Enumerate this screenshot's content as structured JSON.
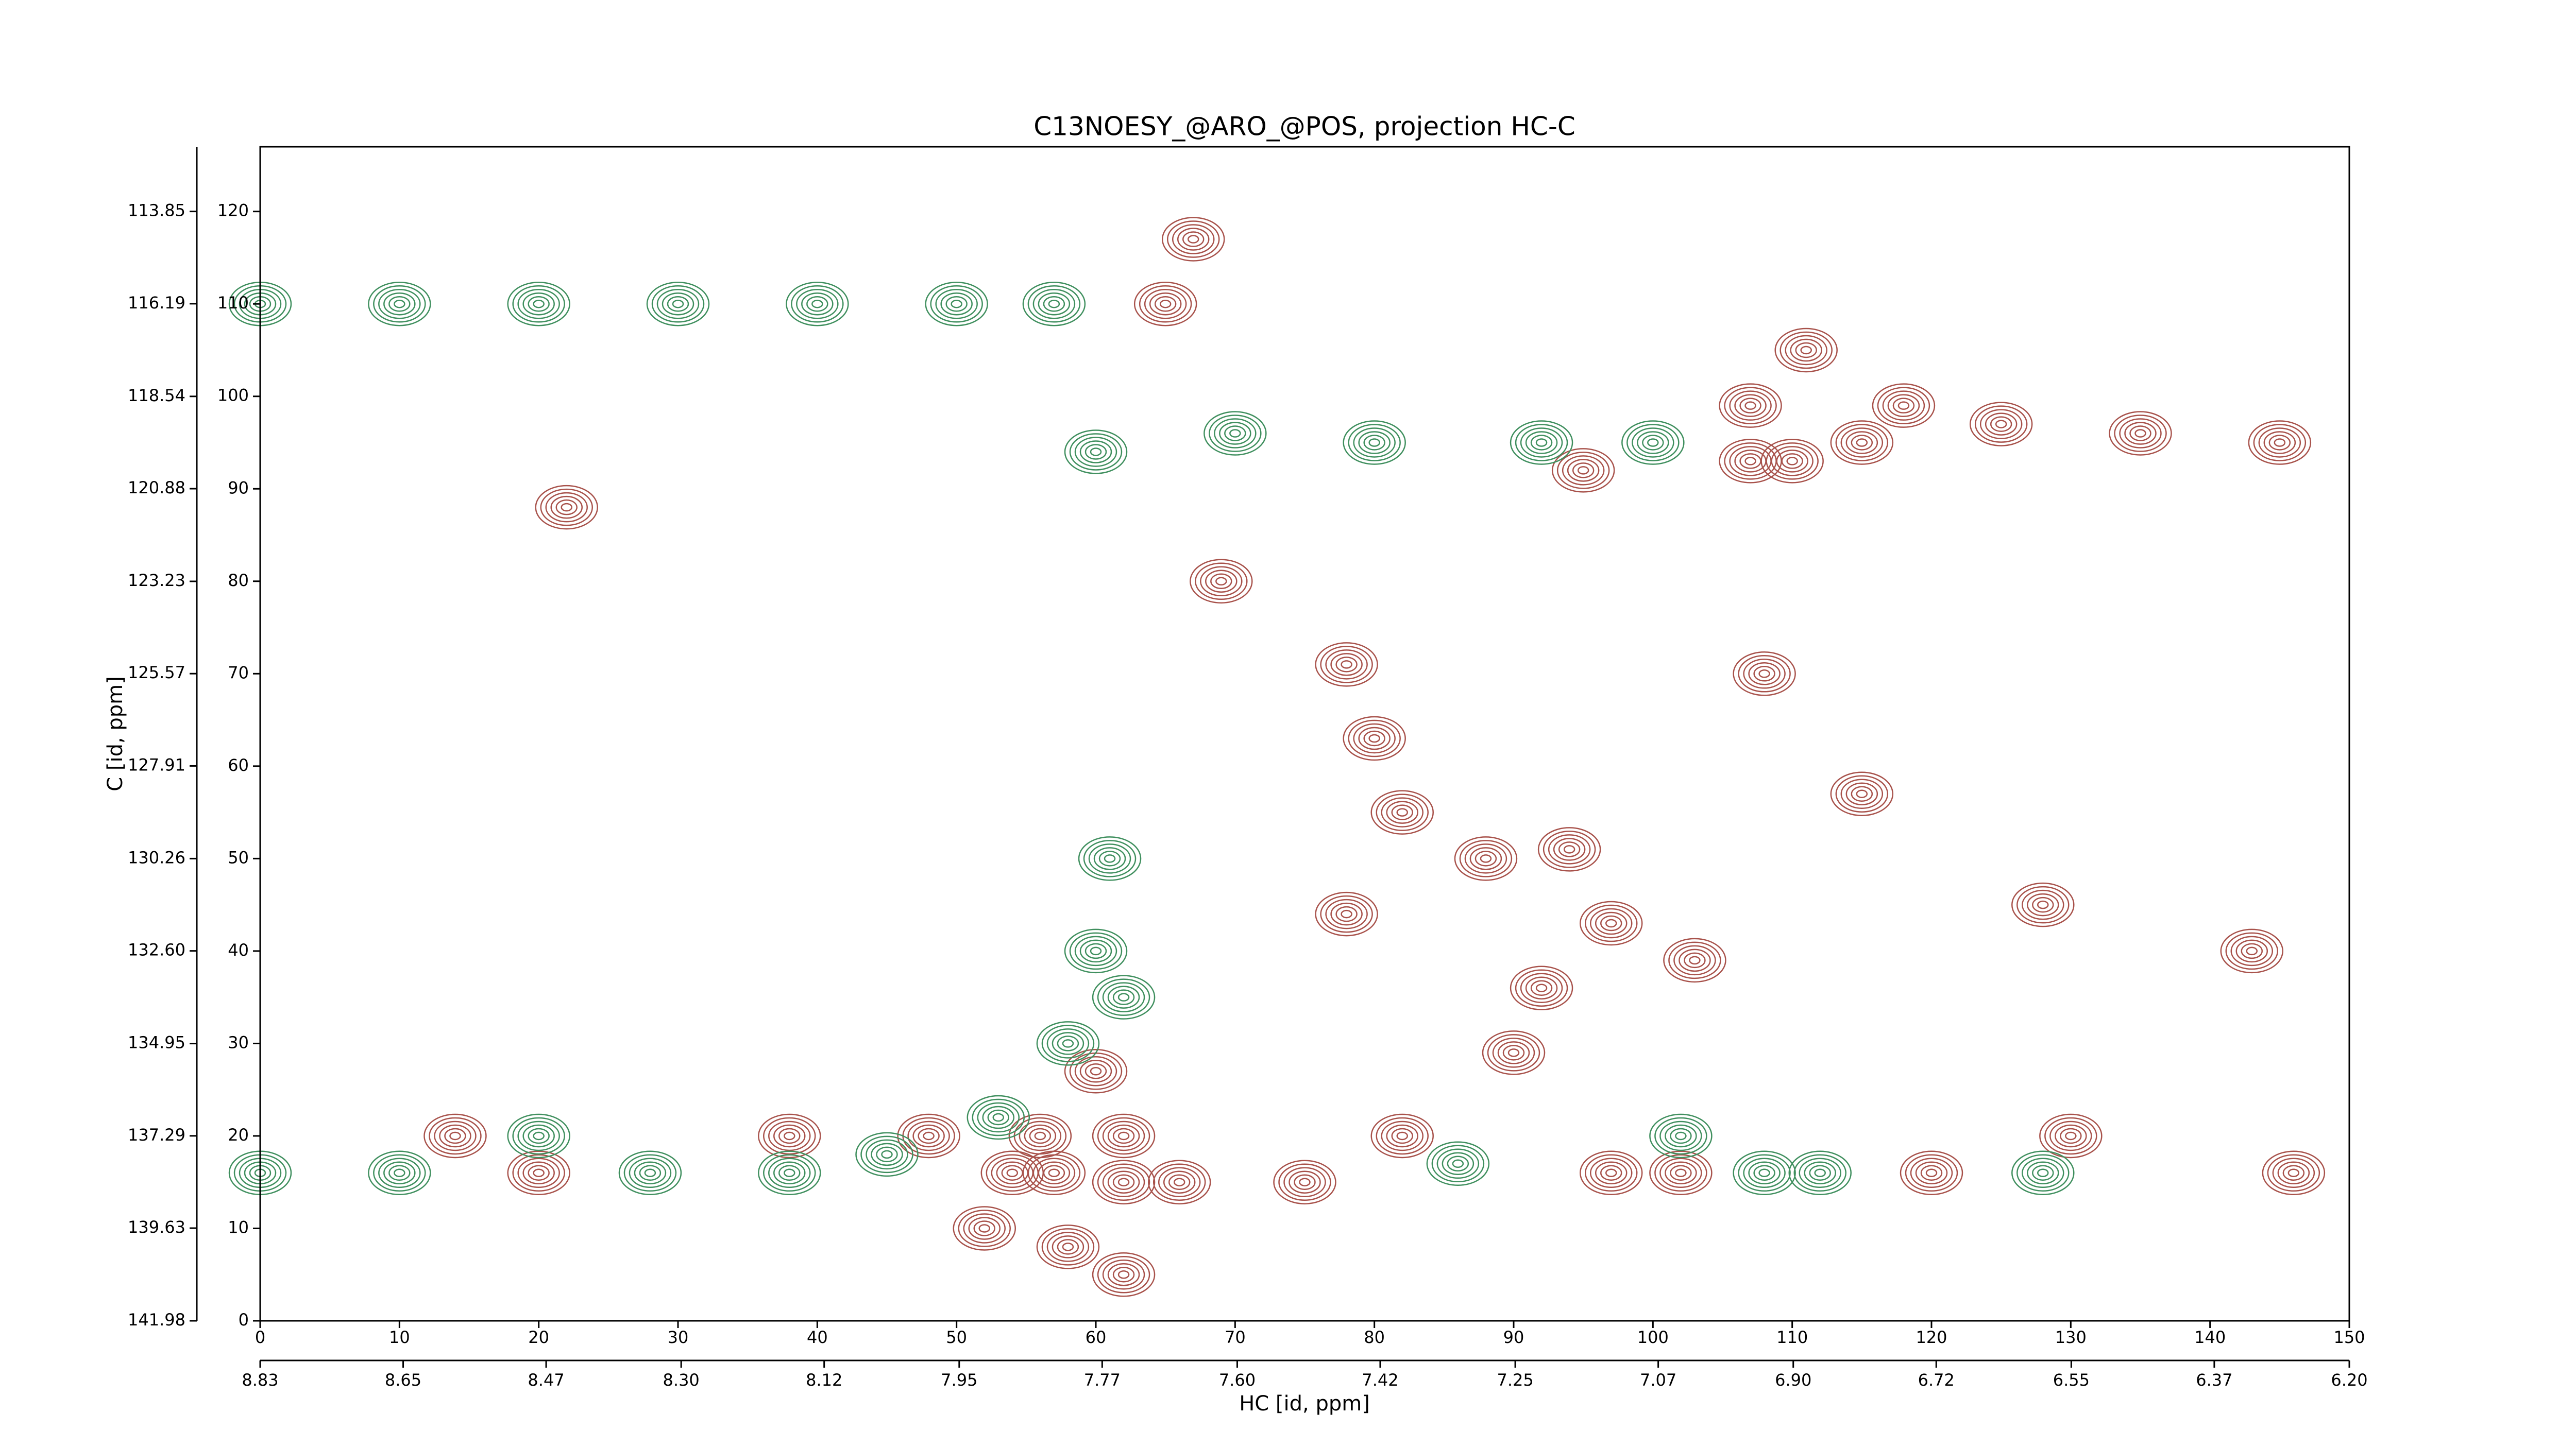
{
  "chart_data": {
    "type": "contour",
    "title": "C13NOESY_@ARO_@POS, projection HC-C",
    "x_label": "HC [id, ppm]",
    "y_label": "C [id, ppm]",
    "xlim": [
      0,
      150
    ],
    "xticks": [
      0,
      10,
      20,
      30,
      40,
      50,
      60,
      70,
      80,
      90,
      100,
      110,
      120,
      130,
      140,
      150
    ],
    "x2lim": [
      8.83,
      6.2
    ],
    "x2ticks": [
      8.83,
      8.65,
      8.47,
      {
        "value": 8.3,
        "label": "8.30"
      },
      8.12,
      7.95,
      7.77,
      {
        "value": 7.6,
        "label": "7.60"
      },
      7.42,
      7.25,
      7.07,
      {
        "value": 6.9,
        "label": "6.90"
      },
      6.72,
      6.55,
      6.37,
      {
        "value": 6.2,
        "label": "6.20"
      }
    ],
    "ylim": [
      0,
      127
    ],
    "yticks": [
      0,
      10,
      20,
      30,
      40,
      50,
      60,
      70,
      80,
      90,
      100,
      110,
      120
    ],
    "y2lim": [
      141.98,
      112.21
    ],
    "y2ticks": [
      141.98,
      139.63,
      137.29,
      134.95,
      {
        "value": 132.6,
        "label": "132.60"
      },
      130.26,
      127.91,
      125.57,
      123.23,
      120.88,
      118.54,
      116.19,
      113.85
    ],
    "series": [
      {
        "color": "#a8524b",
        "x": [
          67,
          65,
          22,
          69,
          78,
          80,
          82,
          78,
          88,
          94,
          97,
          103,
          92,
          90,
          107,
          107,
          110,
          115,
          118,
          125,
          135,
          145,
          128,
          143,
          111,
          115,
          108,
          54,
          57,
          62,
          66,
          75,
          97,
          102,
          120,
          146,
          48,
          56,
          62,
          82,
          20,
          14,
          52,
          58,
          62,
          60,
          95,
          38,
          130
        ],
        "y": [
          117,
          110,
          88,
          80,
          71,
          63,
          55,
          44,
          50,
          51,
          43,
          39,
          36,
          29,
          99,
          93,
          93,
          95,
          99,
          97,
          96,
          95,
          45,
          40,
          105,
          57,
          70,
          16,
          16,
          15,
          15,
          15,
          16,
          16,
          16,
          16,
          20,
          20,
          20,
          20,
          16,
          20,
          10,
          8,
          5,
          27,
          92,
          20,
          20
        ]
      },
      {
        "color": "#3f8f5e",
        "x": [
          0,
          10,
          20,
          30,
          40,
          50,
          57,
          0,
          10,
          20,
          28,
          38,
          45,
          53,
          58,
          60,
          61,
          62,
          112,
          108,
          128,
          60,
          70,
          80,
          92,
          100,
          86,
          102
        ],
        "y": [
          110,
          110,
          110,
          110,
          110,
          110,
          110,
          16,
          16,
          20,
          16,
          16,
          18,
          22,
          30,
          40,
          50,
          35,
          16,
          16,
          16,
          94,
          96,
          95,
          95,
          95,
          17,
          20
        ]
      }
    ]
  }
}
